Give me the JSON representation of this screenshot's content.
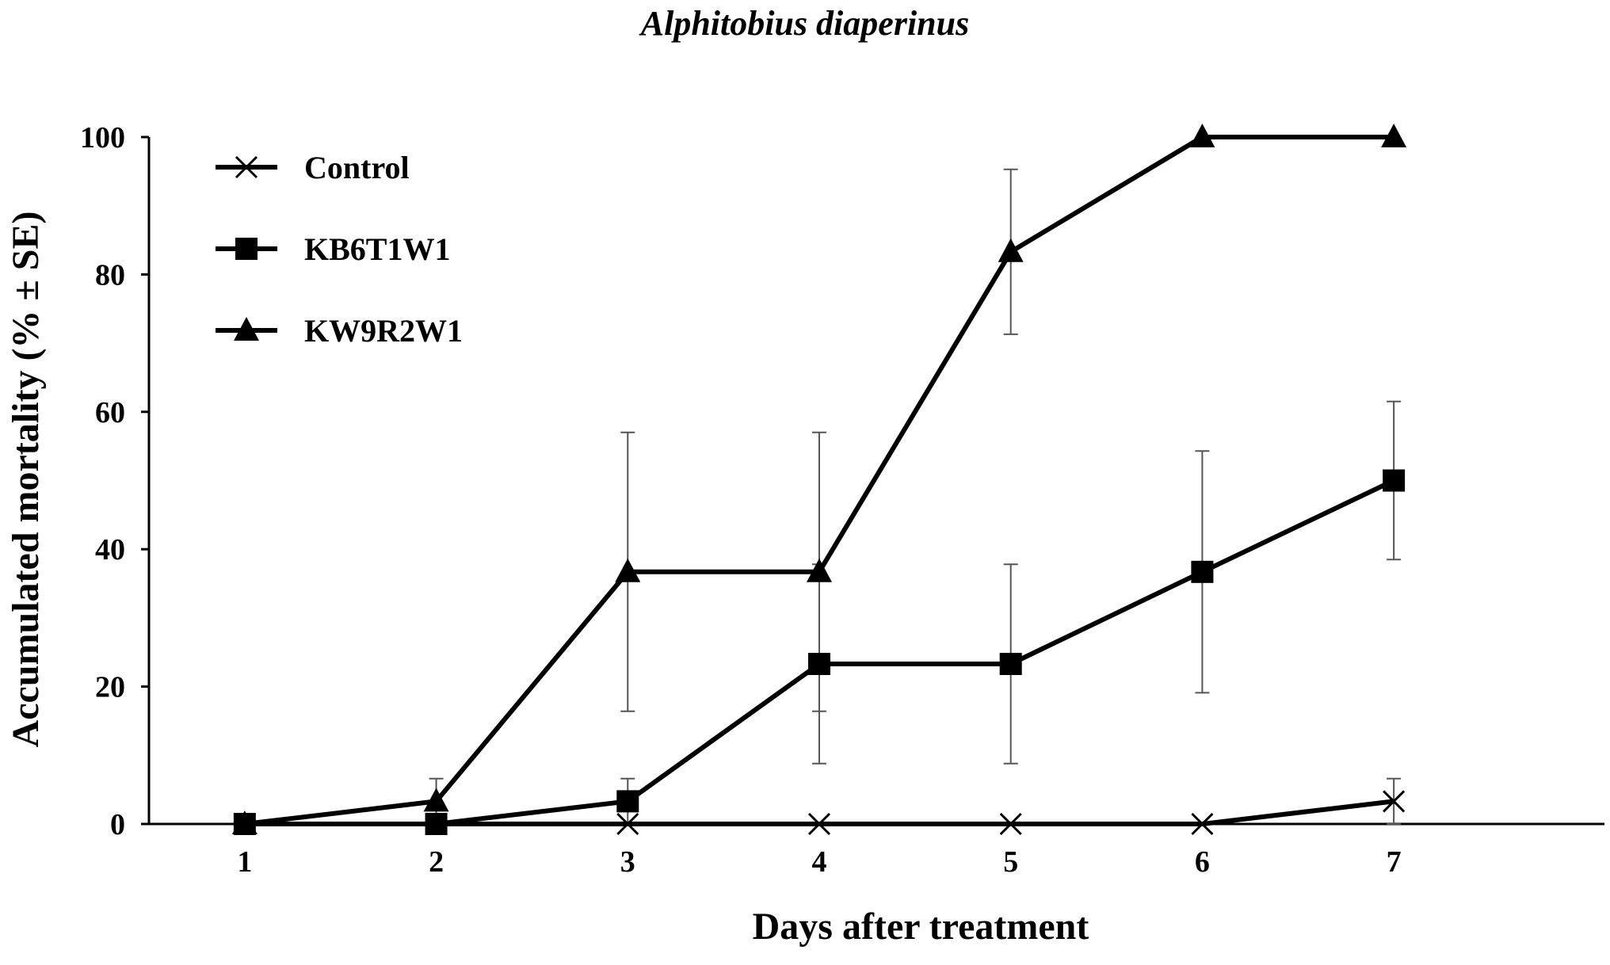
{
  "chart_data": {
    "type": "line",
    "title": "Alphitobius diaperinus",
    "xlabel": "Days after treatment",
    "ylabel": "Accumulated mortality (% ± SE)",
    "x": [
      1,
      2,
      3,
      4,
      5,
      6,
      7
    ],
    "xlim": [
      0.5,
      8.1
    ],
    "ylim": [
      0,
      100
    ],
    "yticks": [
      0,
      20,
      40,
      60,
      80,
      100
    ],
    "grid": false,
    "legend_position": "top-left",
    "series": [
      {
        "name": "Control",
        "marker": "x",
        "values": [
          0,
          0,
          0,
          0,
          0,
          0,
          3.3
        ],
        "se": [
          0,
          0,
          0,
          0,
          0,
          0,
          3.3
        ]
      },
      {
        "name": "KB6T1W1",
        "marker": "square",
        "values": [
          0,
          0,
          3.3,
          23.3,
          23.3,
          36.7,
          50
        ],
        "se": [
          0,
          0,
          3.3,
          14.5,
          14.5,
          17.6,
          11.5
        ]
      },
      {
        "name": "KW9R2W1",
        "marker": "triangle",
        "values": [
          0,
          3.3,
          36.7,
          36.7,
          83.3,
          100,
          100
        ],
        "se": [
          0,
          3.3,
          20.3,
          20.3,
          12,
          0,
          0
        ]
      }
    ],
    "colors": {
      "line": "#000000",
      "error_bar": "#555555"
    }
  }
}
